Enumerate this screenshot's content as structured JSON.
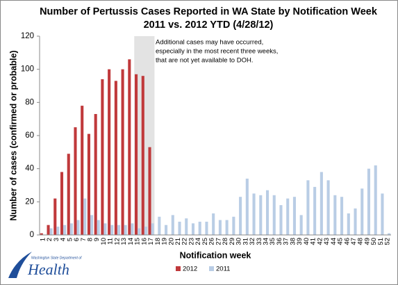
{
  "chart_data": {
    "type": "bar",
    "title": [
      "Number of Pertussis Cases Reported in WA State by Notification Week",
      "2011 vs. 2012 YTD (4/28/12)"
    ],
    "y_label": "Number of cases (confirmed or probable)",
    "x_label": "Notification week",
    "annotation": [
      "Additional cases may have occurred,",
      "especially in the most recent three weeks,",
      "that are not yet available to DOH."
    ],
    "shaded_categories": [
      "15",
      "17"
    ],
    "categories": [
      "1",
      "2",
      "3",
      "4",
      "5",
      "6",
      "7",
      "8",
      "9",
      "10",
      "11",
      "12",
      "13",
      "14",
      "15",
      "16",
      "17",
      "18",
      "19",
      "20",
      "21",
      "22",
      "23",
      "24",
      "25",
      "26",
      "27",
      "28",
      "29",
      "30",
      "31",
      "32",
      "33",
      "34",
      "35",
      "36",
      "37",
      "38",
      "39",
      "40",
      "41",
      "42",
      "43",
      "44",
      "45",
      "46",
      "47",
      "48",
      "49",
      "50",
      "51",
      "52"
    ],
    "series": [
      {
        "name": "2012",
        "color": "#c0393b",
        "values": [
          1,
          6,
          22,
          38,
          49,
          65,
          78,
          61,
          73,
          94,
          100,
          93,
          100,
          106,
          97,
          96,
          53,
          null,
          null,
          null,
          null,
          null,
          null,
          null,
          null,
          null,
          null,
          null,
          null,
          null,
          null,
          null,
          null,
          null,
          null,
          null,
          null,
          null,
          null,
          null,
          null,
          null,
          null,
          null,
          null,
          null,
          null,
          null,
          null,
          null,
          null,
          null
        ]
      },
      {
        "name": "2011",
        "color": "#b9cde5",
        "values": [
          0,
          4,
          5,
          6,
          7,
          9,
          22,
          12,
          9,
          7,
          6,
          6,
          6,
          7,
          4,
          5,
          7,
          11,
          6,
          12,
          8,
          10,
          7,
          8,
          8,
          13,
          9,
          9,
          11,
          23,
          34,
          25,
          24,
          27,
          24,
          18,
          22,
          23,
          12,
          33,
          29,
          38,
          33,
          24,
          23,
          13,
          16,
          28,
          40,
          42,
          25,
          1
        ]
      }
    ],
    "ylim": [
      0,
      120
    ],
    "yticks": [
      0,
      20,
      40,
      60,
      80,
      100,
      120
    ],
    "grid": false,
    "legend": "bottom",
    "logo": {
      "line1": "Washington State Department of",
      "line2": "Health"
    }
  }
}
